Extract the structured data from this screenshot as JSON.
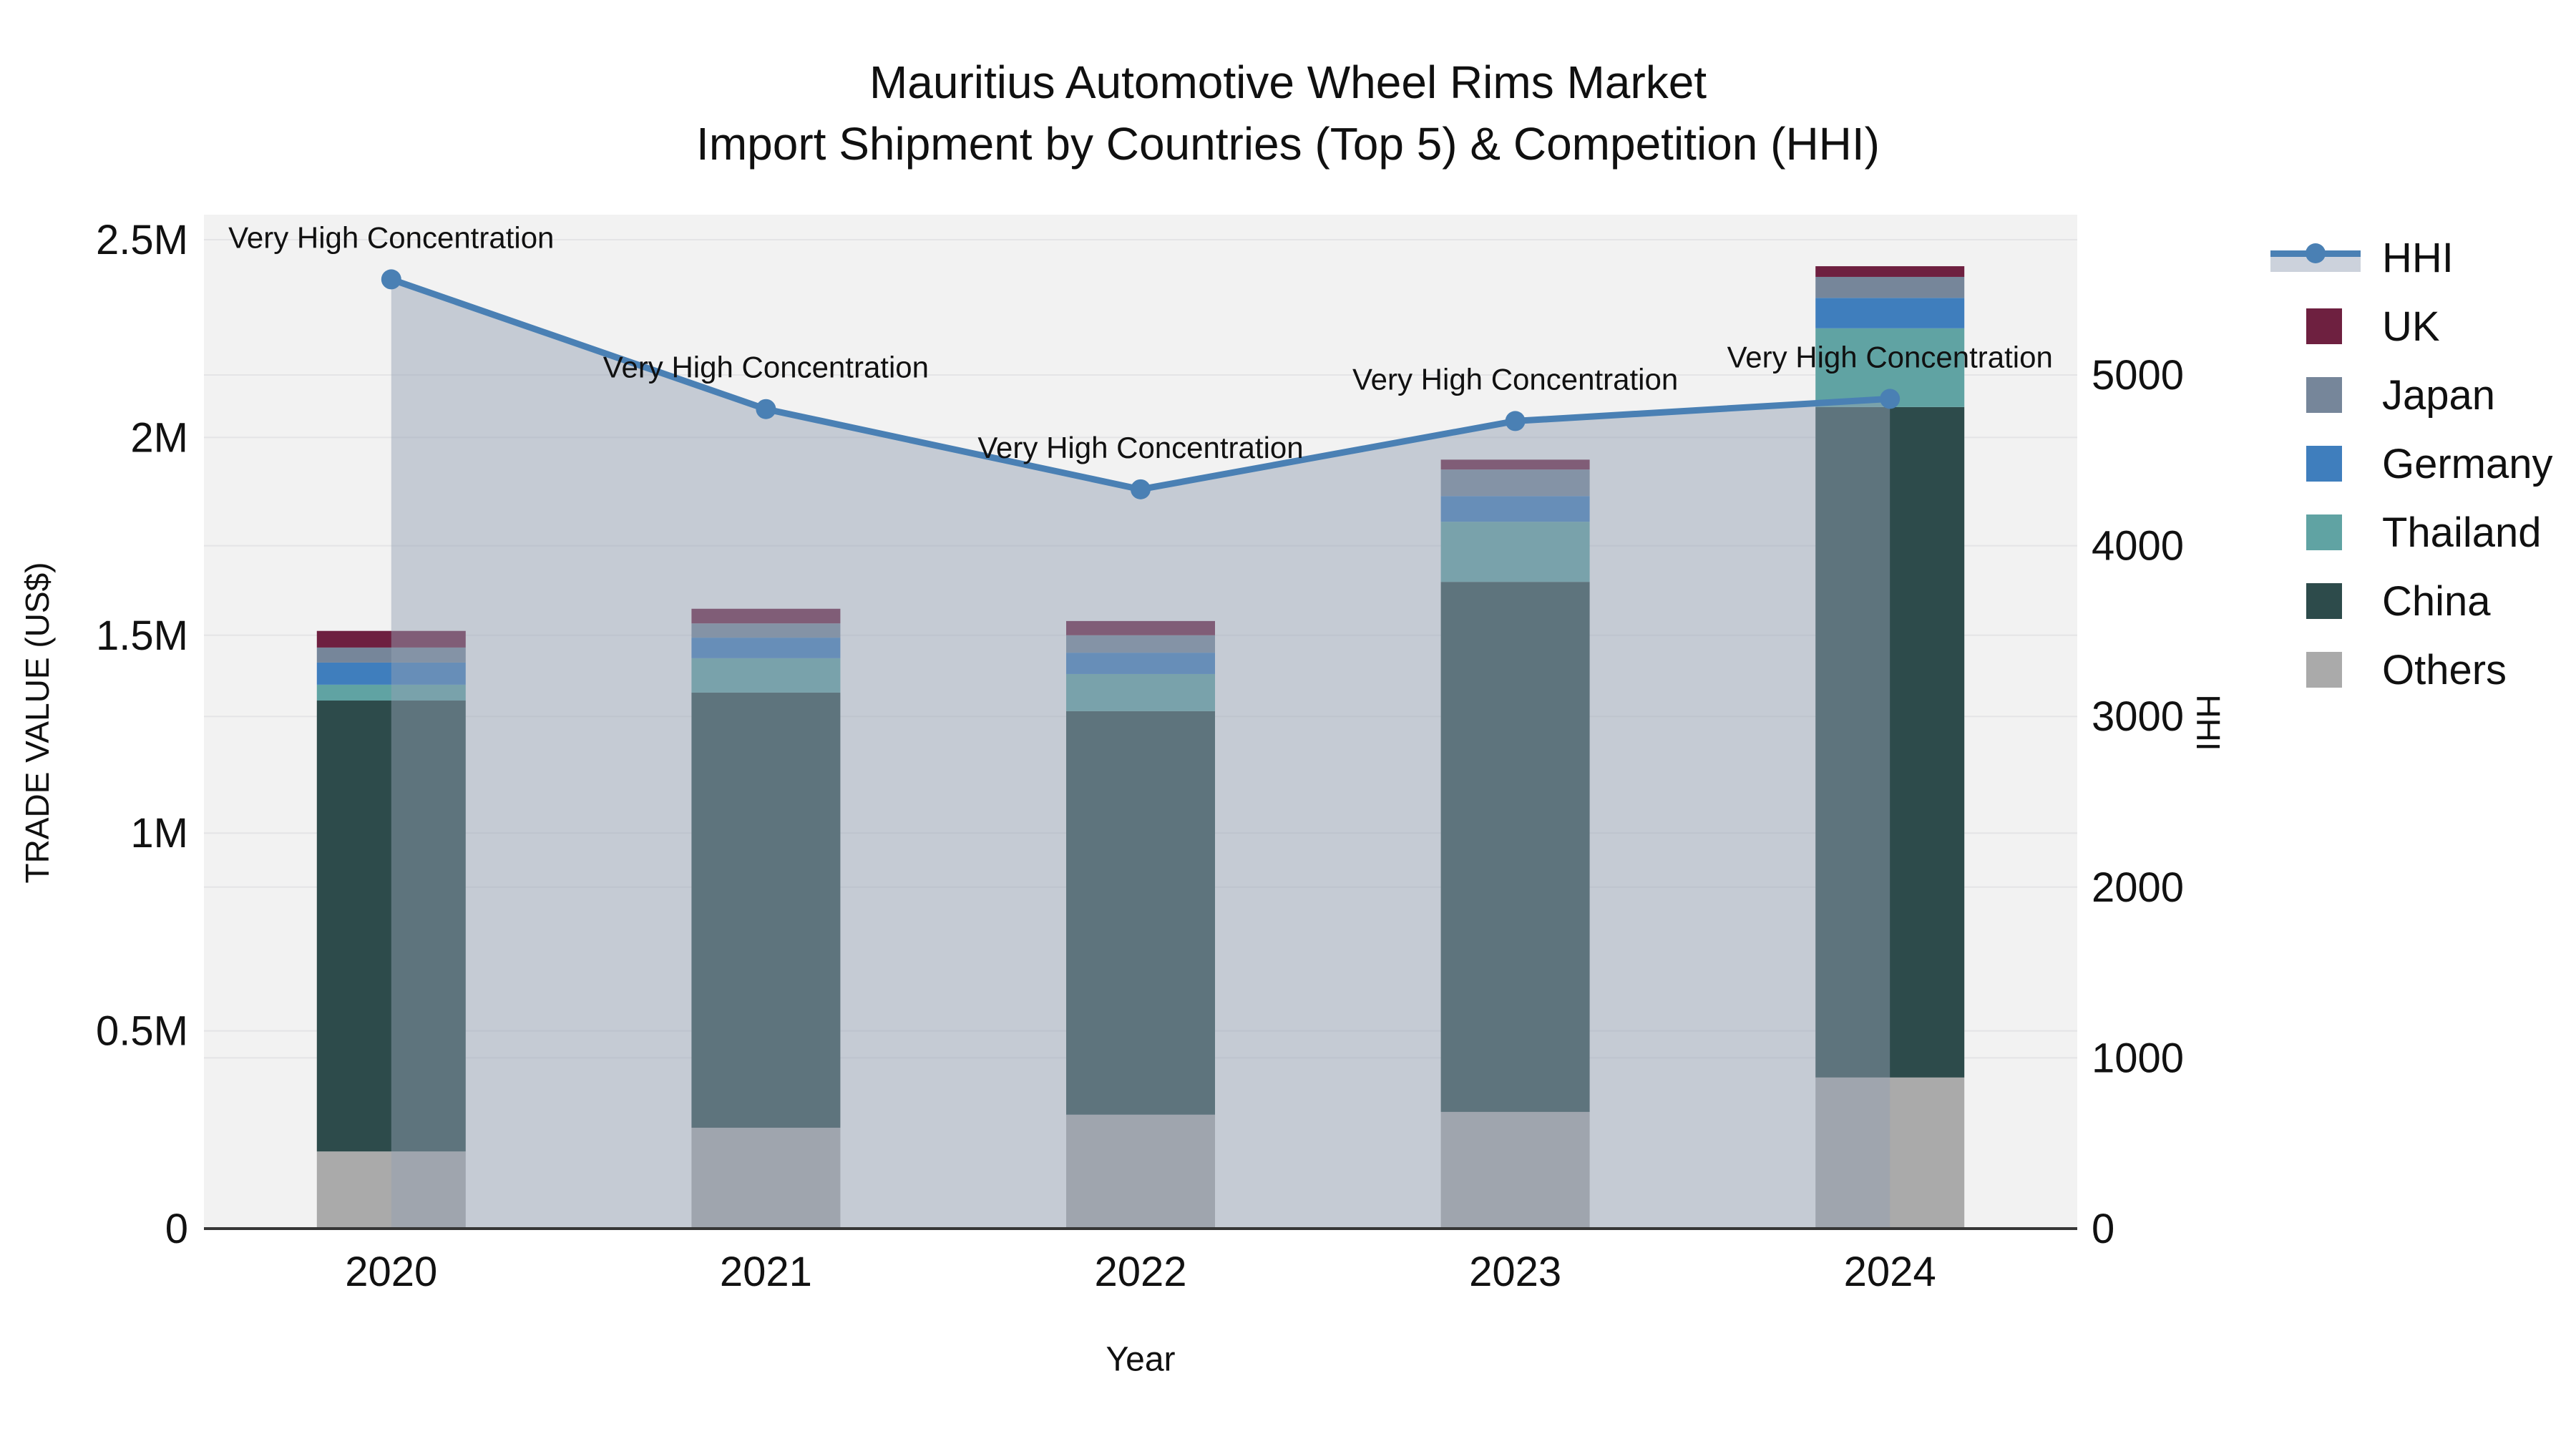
{
  "title": {
    "line1": "Mauritius Automotive Wheel Rims Market",
    "line2": "Import Shipment by Countries (Top 5) & Competition (HHI)"
  },
  "axes": {
    "x": {
      "title": "Year",
      "tick_labels": [
        "2020",
        "2021",
        "2022",
        "2023",
        "2024"
      ]
    },
    "y_left": {
      "title": "TRADE VALUE (US$)",
      "tick_labels": [
        "0",
        "0.5M",
        "1M",
        "1.5M",
        "2M",
        "2.5M"
      ],
      "tick_values": [
        0,
        500000,
        1000000,
        1500000,
        2000000,
        2500000
      ]
    },
    "y_right": {
      "title": "HHI",
      "tick_labels": [
        "0",
        "1000",
        "2000",
        "3000",
        "4000",
        "5000"
      ],
      "tick_values": [
        0,
        1000,
        2000,
        3000,
        4000,
        5000
      ]
    }
  },
  "legend": {
    "items": [
      {
        "label": "HHI",
        "type": "line"
      },
      {
        "label": "UK",
        "type": "swatch"
      },
      {
        "label": "Japan",
        "type": "swatch"
      },
      {
        "label": "Germany",
        "type": "swatch"
      },
      {
        "label": "Thailand",
        "type": "swatch"
      },
      {
        "label": "China",
        "type": "swatch"
      },
      {
        "label": "Others",
        "type": "swatch"
      }
    ]
  },
  "colors": {
    "HHI": "#4a80b4",
    "UK": "#6e2040",
    "Japan": "#76869a",
    "Germany": "#3f7ebd",
    "Thailand": "#60a3a3",
    "China": "#2d4b4b",
    "Others": "#aaaaaa",
    "area_fill": "rgba(149,160,180,0.48)",
    "plot_background": "#f2f2f2",
    "gridline": "#e4e4e6",
    "axis_line": "#363636"
  },
  "chart_data": {
    "type": "combo: stacked bar (trade value, left axis) + line with markers and area fill (HHI, right axis)",
    "categories": [
      "2020",
      "2021",
      "2022",
      "2023",
      "2024"
    ],
    "bar_value_unit": "US$",
    "stack_order_bottom_to_top": [
      "Others",
      "China",
      "Thailand",
      "Germany",
      "Japan",
      "UK"
    ],
    "series": [
      {
        "name": "Others",
        "values": [
          195000,
          255000,
          288000,
          295000,
          382000
        ]
      },
      {
        "name": "China",
        "values": [
          1140000,
          1100000,
          1020000,
          1340000,
          1695000
        ]
      },
      {
        "name": "Thailand",
        "values": [
          40000,
          87000,
          94000,
          152000,
          199000
        ]
      },
      {
        "name": "Germany",
        "values": [
          56000,
          52000,
          54000,
          65000,
          77000
        ]
      },
      {
        "name": "Japan",
        "values": [
          38000,
          36000,
          44000,
          67000,
          53000
        ]
      },
      {
        "name": "UK",
        "values": [
          42000,
          37000,
          36000,
          25000,
          27000
        ]
      }
    ],
    "line_series": {
      "name": "HHI",
      "axis": "right",
      "values": [
        5560,
        4800,
        4330,
        4730,
        4860
      ]
    },
    "annotations": [
      {
        "category": "2020",
        "text": "Very High Concentration"
      },
      {
        "category": "2021",
        "text": "Very High Concentration"
      },
      {
        "category": "2022",
        "text": "Very High Concentration"
      },
      {
        "category": "2023",
        "text": "Very High Concentration"
      },
      {
        "category": "2024",
        "text": "Very High Concentration"
      }
    ],
    "y_left_range": [
      0,
      2563000
    ],
    "y_right_range": [
      0,
      5940
    ],
    "grid": true,
    "legend_position": "right"
  }
}
